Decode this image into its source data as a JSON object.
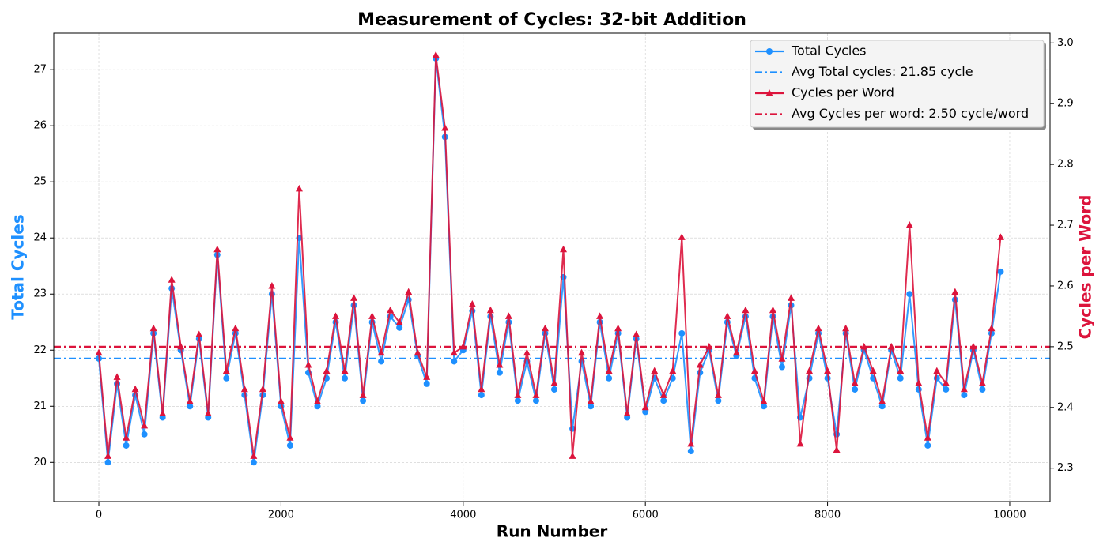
{
  "chart_data": {
    "type": "line",
    "title": "Measurement of Cycles: 32-bit Addition",
    "x_label": "Run Number",
    "y_label": "Total Cycles",
    "y2_label": "Cycles per Word",
    "xlim": [
      -495,
      10443
    ],
    "ylim": [
      19.3,
      27.65
    ],
    "y2lim": [
      2.245,
      3.016
    ],
    "xticks": [
      0,
      2000,
      4000,
      6000,
      8000,
      10000
    ],
    "yticks": [
      20,
      21,
      22,
      23,
      24,
      25,
      26,
      27
    ],
    "y2ticks": [
      2.3,
      2.4,
      2.5,
      2.6,
      2.7,
      2.8,
      2.9,
      {
        "value": 3,
        "label": "3.0"
      }
    ],
    "grid": true,
    "legend": "upper-right",
    "x": [
      0,
      100,
      200,
      300,
      400,
      500,
      600,
      700,
      800,
      900,
      1000,
      1100,
      1200,
      1300,
      1400,
      1500,
      1600,
      1700,
      1800,
      1900,
      2000,
      2100,
      2200,
      2300,
      2400,
      2500,
      2600,
      2700,
      2800,
      2900,
      3000,
      3100,
      3200,
      3300,
      3400,
      3500,
      3600,
      3700,
      3800,
      3900,
      4000,
      4100,
      4200,
      4300,
      4400,
      4500,
      4600,
      4700,
      4800,
      4900,
      5000,
      5100,
      5200,
      5300,
      5400,
      5500,
      5600,
      5700,
      5800,
      5900,
      6000,
      6100,
      6200,
      6300,
      6400,
      6500,
      6600,
      6700,
      6800,
      6900,
      7000,
      7100,
      7200,
      7300,
      7400,
      7500,
      7600,
      7700,
      7800,
      7900,
      8000,
      8100,
      8200,
      8300,
      8400,
      8500,
      8600,
      8700,
      8800,
      8900,
      9000,
      9100,
      9200,
      9300,
      9400,
      9500,
      9600,
      9700,
      9800,
      9900
    ],
    "series": [
      {
        "name": "Total Cycles",
        "color": "#1e90ff",
        "marker": "circle",
        "axis": "y",
        "values": [
          21.85,
          20.0,
          21.4,
          20.3,
          21.2,
          20.5,
          22.3,
          20.8,
          23.1,
          22.0,
          21.0,
          22.2,
          20.8,
          23.7,
          21.5,
          22.3,
          21.2,
          20.0,
          21.2,
          23.0,
          21.0,
          20.3,
          24.0,
          21.6,
          21.0,
          21.5,
          22.5,
          21.5,
          22.8,
          21.1,
          22.5,
          21.8,
          22.6,
          22.4,
          22.9,
          21.9,
          21.4,
          27.2,
          25.8,
          21.8,
          22.0,
          22.7,
          21.2,
          22.6,
          21.6,
          22.5,
          21.1,
          21.8,
          21.1,
          22.3,
          21.3,
          23.3,
          20.6,
          21.8,
          21.0,
          22.5,
          21.5,
          22.3,
          20.8,
          22.2,
          20.9,
          21.5,
          21.1,
          21.5,
          22.3,
          20.2,
          21.6,
          22.0,
          21.1,
          22.5,
          21.9,
          22.6,
          21.5,
          21.0,
          22.6,
          21.7,
          22.8,
          20.8,
          21.5,
          22.3,
          21.5,
          20.5,
          22.3,
          21.3,
          22.0,
          21.5,
          21.0,
          22.0,
          21.5,
          23.0,
          21.3,
          20.3,
          21.5,
          21.3,
          22.9,
          21.2,
          22.0,
          21.3,
          22.3,
          23.4
        ]
      },
      {
        "name": "Cycles per Word",
        "color": "#dc143c",
        "marker": "triangle",
        "axis": "y2",
        "values": [
          2.49,
          2.32,
          2.45,
          2.35,
          2.43,
          2.37,
          2.53,
          2.39,
          2.61,
          2.5,
          2.41,
          2.52,
          2.39,
          2.66,
          2.46,
          2.53,
          2.43,
          2.32,
          2.43,
          2.6,
          2.41,
          2.35,
          2.76,
          2.47,
          2.41,
          2.46,
          2.55,
          2.46,
          2.58,
          2.42,
          2.55,
          2.49,
          2.56,
          2.54,
          2.59,
          2.49,
          2.45,
          2.98,
          2.86,
          2.49,
          2.5,
          2.57,
          2.43,
          2.56,
          2.47,
          2.55,
          2.42,
          2.49,
          2.42,
          2.53,
          2.44,
          2.66,
          2.32,
          2.49,
          2.41,
          2.55,
          2.46,
          2.53,
          2.39,
          2.52,
          2.4,
          2.46,
          2.42,
          2.46,
          2.68,
          2.34,
          2.47,
          2.5,
          2.42,
          2.55,
          2.49,
          2.56,
          2.46,
          2.41,
          2.56,
          2.48,
          2.58,
          2.34,
          2.46,
          2.53,
          2.46,
          2.33,
          2.53,
          2.44,
          2.5,
          2.46,
          2.41,
          2.5,
          2.46,
          2.7,
          2.44,
          2.35,
          2.46,
          2.44,
          2.59,
          2.43,
          2.5,
          2.44,
          2.53,
          2.68
        ]
      }
    ],
    "avg_lines": [
      {
        "name": "Avg Total cycles: 21.85 cycle",
        "value": 21.85,
        "axis": "y",
        "color": "#1e90ff"
      },
      {
        "name": "Avg Cycles per word: 2.50 cycle/word",
        "value": 2.5,
        "axis": "y2",
        "color": "#dc143c"
      }
    ]
  }
}
